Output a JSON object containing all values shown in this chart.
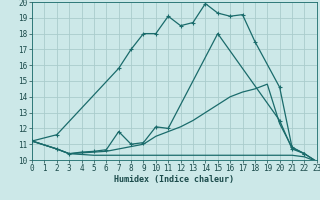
{
  "xlabel": "Humidex (Indice chaleur)",
  "xlim": [
    0,
    23
  ],
  "ylim": [
    10,
    20
  ],
  "yticks": [
    10,
    11,
    12,
    13,
    14,
    15,
    16,
    17,
    18,
    19,
    20
  ],
  "xticks": [
    0,
    1,
    2,
    3,
    4,
    5,
    6,
    7,
    8,
    9,
    10,
    11,
    12,
    13,
    14,
    15,
    16,
    17,
    18,
    19,
    20,
    21,
    22,
    23
  ],
  "bg_color": "#cce8e8",
  "grid_color": "#aacccc",
  "line_color": "#1a6b6b",
  "line1_x": [
    0,
    2,
    7,
    8,
    9,
    10,
    11,
    12,
    13,
    14,
    15,
    16,
    17,
    18,
    20,
    21,
    22,
    23
  ],
  "line1_y": [
    11.2,
    11.6,
    15.8,
    17.0,
    18.0,
    18.0,
    19.1,
    18.5,
    18.7,
    19.9,
    19.3,
    19.1,
    19.2,
    17.5,
    14.6,
    10.8,
    10.4,
    9.9
  ],
  "line2_x": [
    0,
    2,
    3,
    4,
    5,
    6,
    7,
    8,
    9,
    10,
    11,
    15,
    20,
    21,
    22
  ],
  "line2_y": [
    11.2,
    10.7,
    10.4,
    10.5,
    10.55,
    10.65,
    11.8,
    11.0,
    11.1,
    12.1,
    12.0,
    18.0,
    12.5,
    10.7,
    10.4
  ],
  "line3_x": [
    0,
    2,
    3,
    4,
    5,
    6,
    7,
    8,
    9,
    10,
    11,
    12,
    13,
    14,
    15,
    16,
    17,
    18,
    19,
    20,
    21,
    22,
    23
  ],
  "line3_y": [
    11.2,
    10.7,
    10.4,
    10.45,
    10.5,
    10.55,
    10.7,
    10.85,
    11.0,
    11.5,
    11.8,
    12.1,
    12.5,
    13.0,
    13.5,
    14.0,
    14.3,
    14.5,
    14.8,
    12.3,
    10.8,
    10.4,
    9.9
  ],
  "line4_x": [
    0,
    2,
    3,
    4,
    5,
    6,
    7,
    8,
    9,
    10,
    11,
    12,
    13,
    14,
    15,
    16,
    17,
    18,
    19,
    20,
    21,
    22,
    23
  ],
  "line4_y": [
    11.2,
    10.7,
    10.4,
    10.35,
    10.3,
    10.3,
    10.3,
    10.3,
    10.3,
    10.3,
    10.3,
    10.3,
    10.3,
    10.3,
    10.3,
    10.3,
    10.3,
    10.3,
    10.3,
    10.3,
    10.3,
    10.2,
    9.9
  ]
}
